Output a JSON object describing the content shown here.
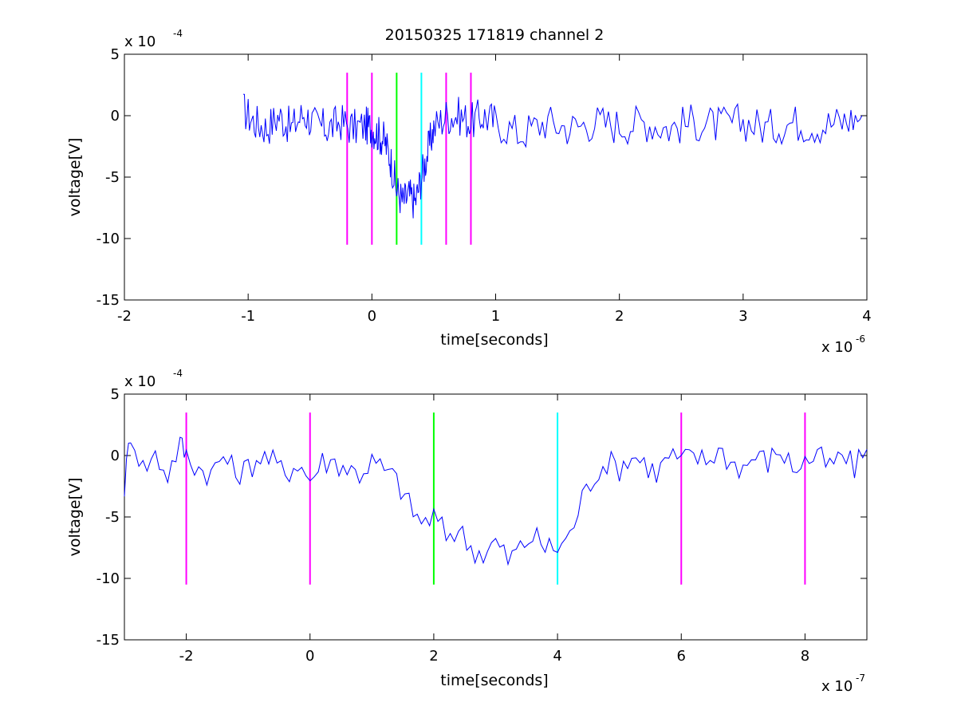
{
  "figure": {
    "title": "20150325 171819 channel 2"
  },
  "chart_data": [
    {
      "type": "line",
      "title": "20150325 171819 channel 2",
      "xlabel": "time[seconds]",
      "ylabel": "voltage[V]",
      "x_multiplier_label": "x 10",
      "x_multiplier_exp": "-6",
      "y_multiplier_label": "x 10",
      "y_multiplier_exp": "-4",
      "xlim": [
        -2,
        4
      ],
      "ylim": [
        -15,
        5
      ],
      "x_ticks": [
        -2,
        -1,
        0,
        1,
        2,
        3,
        4
      ],
      "x_tick_labels": [
        "-2",
        "-1",
        "0",
        "1",
        "2",
        "3",
        "4"
      ],
      "y_ticks": [
        5,
        0,
        -5,
        -10,
        -15
      ],
      "y_tick_labels": [
        "5",
        "0",
        "-5",
        "-10",
        "-15"
      ],
      "grid": false,
      "series": [
        {
          "color": "#0000ff",
          "x": [
            -1.04,
            -0.95,
            -0.85,
            -0.75,
            -0.65,
            -0.55,
            -0.45,
            -0.35,
            -0.25,
            -0.15,
            -0.05,
            0.0,
            0.05,
            0.1,
            0.15,
            0.2,
            0.25,
            0.3,
            0.35,
            0.4,
            0.45,
            0.5,
            0.6,
            0.7,
            0.8,
            0.9,
            1.0,
            1.2,
            1.4,
            1.6,
            1.8,
            2.0,
            2.2,
            2.4,
            2.6,
            2.8,
            3.0,
            3.2,
            3.4,
            3.6,
            3.8,
            3.96
          ],
          "y": [
            0.5,
            -0.5,
            -1,
            0,
            -1,
            0.2,
            -0.8,
            -1,
            -0.5,
            -1,
            -0.8,
            -1,
            -1.5,
            -2,
            -3.5,
            -6,
            -7,
            -6.5,
            -7,
            -5,
            -3,
            -1,
            0,
            0,
            -0.5,
            0,
            -0.5,
            -1.5,
            -0.5,
            -1,
            -0.5,
            -0.8,
            -0.5,
            -1,
            -0.5,
            -0.8,
            -0.5,
            -1,
            -0.5,
            -0.8,
            -0.5,
            0
          ]
        }
      ],
      "markers": [
        {
          "x": -0.2,
          "y_from": -10.5,
          "y_to": 3.5,
          "color": "#ff00ff"
        },
        {
          "x": 0.0,
          "y_from": -10.5,
          "y_to": 3.5,
          "color": "#ff00ff"
        },
        {
          "x": 0.2,
          "y_from": -10.5,
          "y_to": 3.5,
          "color": "#00ff00"
        },
        {
          "x": 0.4,
          "y_from": -10.5,
          "y_to": 3.5,
          "color": "#00ffff"
        },
        {
          "x": 0.6,
          "y_from": -10.5,
          "y_to": 3.5,
          "color": "#ff00ff"
        },
        {
          "x": 0.8,
          "y_from": -10.5,
          "y_to": 3.5,
          "color": "#ff00ff"
        }
      ]
    },
    {
      "type": "line",
      "title": "",
      "xlabel": "time[seconds]",
      "ylabel": "voltage[V]",
      "x_multiplier_label": "x 10",
      "x_multiplier_exp": "-7",
      "y_multiplier_label": "x 10",
      "y_multiplier_exp": "-4",
      "xlim": [
        -3,
        9
      ],
      "ylim": [
        -15,
        5
      ],
      "x_ticks": [
        -2,
        0,
        2,
        4,
        6,
        8
      ],
      "x_tick_labels": [
        "-2",
        "0",
        "2",
        "4",
        "6",
        "8"
      ],
      "y_ticks": [
        5,
        0,
        -5,
        -10,
        -15
      ],
      "y_tick_labels": [
        "5",
        "0",
        "-5",
        "-10",
        "-15"
      ],
      "grid": false,
      "series": [
        {
          "color": "#0000ff",
          "x": [
            -3.0,
            -2.9,
            -2.7,
            -2.5,
            -2.3,
            -2.1,
            -2.0,
            -1.8,
            -1.6,
            -1.4,
            -1.2,
            -1.0,
            -0.8,
            -0.6,
            -0.4,
            -0.2,
            0.0,
            0.2,
            0.4,
            0.6,
            0.8,
            1.0,
            1.2,
            1.4,
            1.6,
            1.8,
            2.0,
            2.2,
            2.4,
            2.6,
            2.8,
            3.0,
            3.2,
            3.4,
            3.6,
            3.8,
            4.0,
            4.2,
            4.4,
            4.6,
            4.8,
            5.0,
            5.2,
            5.4,
            5.6,
            5.8,
            6.0,
            6.2,
            6.4,
            6.6,
            6.8,
            7.0,
            7.2,
            7.4,
            7.6,
            7.8,
            8.0,
            8.2,
            8.4,
            8.6,
            8.8,
            9.0
          ],
          "y": [
            -2.5,
            2,
            -1,
            0,
            -1.5,
            1,
            0,
            -1,
            -1.5,
            0,
            -1.5,
            -1,
            0,
            -0.5,
            -1.5,
            -0.5,
            -2,
            -0.5,
            -0.5,
            -1,
            -1.5,
            -0.5,
            -1.2,
            -2,
            -4,
            -5.5,
            -5,
            -6.5,
            -6,
            -7.5,
            -8,
            -7,
            -8.5,
            -7.5,
            -6.5,
            -7.5,
            -7.5,
            -6.5,
            -3.5,
            -1.5,
            -0.5,
            -1,
            0,
            -0.5,
            -1.5,
            0,
            -0.5,
            0,
            -0.5,
            0.5,
            -0.5,
            -1,
            0,
            -0.5,
            0.5,
            -1,
            -0.5,
            0,
            -1,
            0,
            -1,
            0.5
          ]
        }
      ],
      "markers": [
        {
          "x": -2.0,
          "y_from": -10.5,
          "y_to": 3.5,
          "color": "#ff00ff"
        },
        {
          "x": 0.0,
          "y_from": -10.5,
          "y_to": 3.5,
          "color": "#ff00ff"
        },
        {
          "x": 2.0,
          "y_from": -10.5,
          "y_to": 3.5,
          "color": "#00ff00"
        },
        {
          "x": 4.0,
          "y_from": -10.5,
          "y_to": 3.5,
          "color": "#00ffff"
        },
        {
          "x": 6.0,
          "y_from": -10.5,
          "y_to": 3.5,
          "color": "#ff00ff"
        },
        {
          "x": 8.0,
          "y_from": -10.5,
          "y_to": 3.5,
          "color": "#ff00ff"
        }
      ]
    }
  ]
}
